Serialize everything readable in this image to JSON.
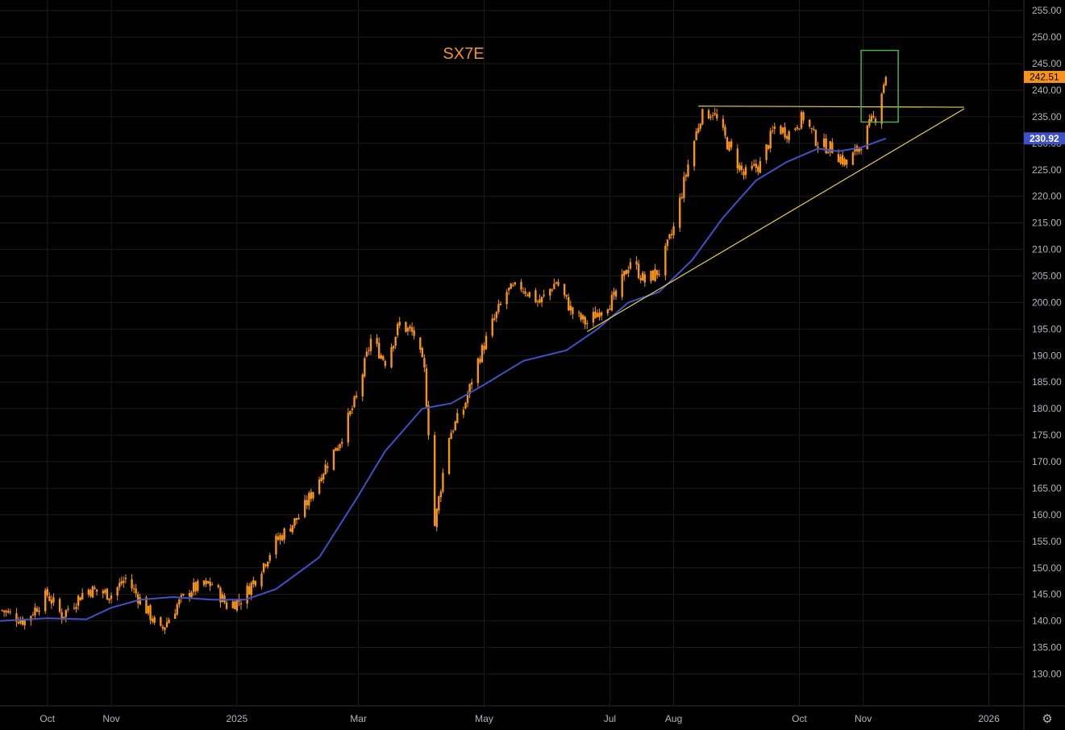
{
  "chart_data": {
    "type": "candlestick",
    "title": "SX7E",
    "colors": {
      "background": "#000000",
      "grid": "#1c1c1c",
      "candle": "#f7931a",
      "moving_average": "#3f51c9",
      "trendline": "#e8d43a",
      "highlight_box": "#4caf50",
      "last_price_badge": "#f7931a",
      "ma_badge": "#3f51c9",
      "tick_text": "#b2b5be"
    },
    "y_axis": {
      "range": [
        124,
        257
      ],
      "ticks": [
        "255.00",
        "250.00",
        "245.00",
        "240.00",
        "235.00",
        "230.00",
        "225.00",
        "220.00",
        "215.00",
        "210.00",
        "205.00",
        "200.00",
        "195.00",
        "190.00",
        "185.00",
        "180.00",
        "175.00",
        "170.00",
        "165.00",
        "160.00",
        "155.00",
        "150.00",
        "145.00",
        "140.00",
        "135.00",
        "130.00"
      ]
    },
    "x_axis": {
      "range": [
        "2024-09-08",
        "2026-01-18"
      ],
      "labels": [
        {
          "text": "Oct",
          "date": "2024-10-01"
        },
        {
          "text": "Nov",
          "date": "2024-11-01"
        },
        {
          "text": "2025",
          "date": "2025-01-01"
        },
        {
          "text": "Mar",
          "date": "2025-03-01"
        },
        {
          "text": "May",
          "date": "2025-05-01"
        },
        {
          "text": "Jul",
          "date": "2025-07-01"
        },
        {
          "text": "Aug",
          "date": "2025-08-01"
        },
        {
          "text": "Oct",
          "date": "2025-10-01"
        },
        {
          "text": "Nov",
          "date": "2025-11-01"
        },
        {
          "text": "2026",
          "date": "2026-01-01"
        }
      ]
    },
    "price_path": [
      [
        "2024-09-09",
        142
      ],
      [
        "2024-09-20",
        140
      ],
      [
        "2024-10-01",
        145
      ],
      [
        "2024-10-08",
        141
      ],
      [
        "2024-10-20",
        146
      ],
      [
        "2024-11-01",
        145
      ],
      [
        "2024-11-08",
        148
      ],
      [
        "2024-11-15",
        144
      ],
      [
        "2024-11-25",
        138
      ],
      [
        "2024-12-03",
        143
      ],
      [
        "2024-12-10",
        146
      ],
      [
        "2024-12-20",
        147
      ],
      [
        "2024-12-27",
        143
      ],
      [
        "2025-01-03",
        144
      ],
      [
        "2025-01-10",
        148
      ],
      [
        "2025-01-20",
        155
      ],
      [
        "2025-02-01",
        160
      ],
      [
        "2025-02-10",
        167
      ],
      [
        "2025-02-20",
        174
      ],
      [
        "2025-02-28",
        182
      ],
      [
        "2025-03-07",
        193
      ],
      [
        "2025-03-14",
        189
      ],
      [
        "2025-03-21",
        196
      ],
      [
        "2025-03-28",
        194
      ],
      [
        "2025-04-02",
        187
      ],
      [
        "2025-04-04",
        176
      ],
      [
        "2025-04-07",
        158
      ],
      [
        "2025-04-09",
        163
      ],
      [
        "2025-04-14",
        175
      ],
      [
        "2025-04-21",
        180
      ],
      [
        "2025-04-28",
        189
      ],
      [
        "2025-05-05",
        196
      ],
      [
        "2025-05-12",
        202
      ],
      [
        "2025-05-19",
        203
      ],
      [
        "2025-05-28",
        200
      ],
      [
        "2025-06-05",
        204
      ],
      [
        "2025-06-13",
        198
      ],
      [
        "2025-06-20",
        196
      ],
      [
        "2025-06-27",
        199
      ],
      [
        "2025-07-04",
        201
      ],
      [
        "2025-07-11",
        208
      ],
      [
        "2025-07-18",
        204
      ],
      [
        "2025-07-25",
        206
      ],
      [
        "2025-08-01",
        214
      ],
      [
        "2025-08-08",
        226
      ],
      [
        "2025-08-14",
        235
      ],
      [
        "2025-08-20",
        236
      ],
      [
        "2025-08-27",
        230
      ],
      [
        "2025-09-04",
        224
      ],
      [
        "2025-09-12",
        226
      ],
      [
        "2025-09-19",
        233
      ],
      [
        "2025-09-26",
        232
      ],
      [
        "2025-10-03",
        235
      ],
      [
        "2025-10-10",
        230
      ],
      [
        "2025-10-17",
        229
      ],
      [
        "2025-10-24",
        226
      ],
      [
        "2025-10-31",
        230
      ],
      [
        "2025-11-05",
        234
      ],
      [
        "2025-11-07",
        235
      ],
      [
        "2025-11-10",
        240
      ],
      [
        "2025-11-12",
        242.51
      ]
    ],
    "candle_size": 1.7,
    "moving_average": [
      [
        "2024-09-08",
        140
      ],
      [
        "2024-10-01",
        140.5
      ],
      [
        "2024-10-20",
        140.3
      ],
      [
        "2024-11-01",
        142.5
      ],
      [
        "2024-11-15",
        144
      ],
      [
        "2024-12-01",
        144.5
      ],
      [
        "2024-12-20",
        144
      ],
      [
        "2025-01-05",
        144
      ],
      [
        "2025-01-20",
        146
      ],
      [
        "2025-02-10",
        152
      ],
      [
        "2025-02-28",
        163
      ],
      [
        "2025-03-14",
        172
      ],
      [
        "2025-04-01",
        180
      ],
      [
        "2025-04-15",
        181
      ],
      [
        "2025-05-01",
        184.5
      ],
      [
        "2025-05-20",
        189
      ],
      [
        "2025-06-10",
        191
      ],
      [
        "2025-06-25",
        195
      ],
      [
        "2025-07-10",
        200
      ],
      [
        "2025-07-25",
        202
      ],
      [
        "2025-08-10",
        208
      ],
      [
        "2025-08-25",
        216
      ],
      [
        "2025-09-10",
        223
      ],
      [
        "2025-09-25",
        226.5
      ],
      [
        "2025-10-10",
        229
      ],
      [
        "2025-10-20",
        228.5
      ],
      [
        "2025-10-31",
        229.2
      ],
      [
        "2025-11-12",
        230.92
      ]
    ],
    "trendlines": [
      {
        "from": [
          "2025-08-13",
          237.0
        ],
        "to": [
          "2025-12-20",
          236.8
        ]
      },
      {
        "from": [
          "2025-06-20",
          194.5
        ],
        "to": [
          "2025-12-20",
          236.5
        ]
      }
    ],
    "highlight_box": {
      "from_date": "2025-10-31",
      "to_date": "2025-11-18",
      "top": 247.5,
      "bottom": 234.0
    },
    "last_price": {
      "value": 242.51,
      "label": "242.51"
    },
    "ma_last": {
      "value": 230.92,
      "label": "230.92"
    }
  }
}
